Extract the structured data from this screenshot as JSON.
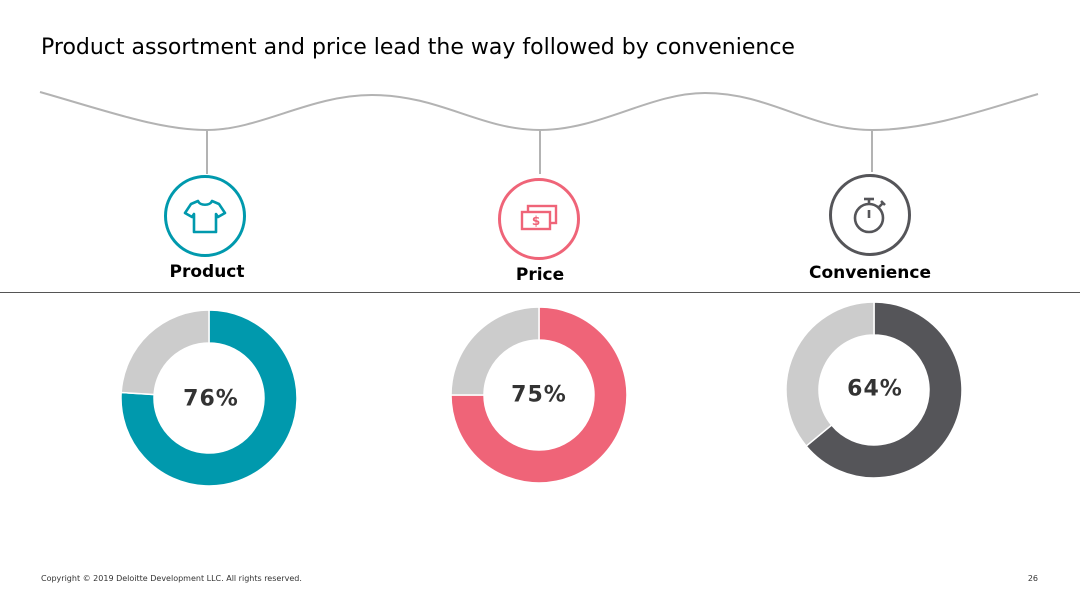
{
  "slide": {
    "title": "Product assortment and price lead the way followed by convenience",
    "footer": "Copyright © 2019 Deloitte Development LLC. All rights reserved.",
    "page_number": "26"
  },
  "colors": {
    "product": "#0099ad",
    "price": "#ef6478",
    "convenience": "#555559",
    "remainder": "#cccccc",
    "wave": "#b3b3b3"
  },
  "icons": {
    "product": "tshirt-icon",
    "price": "money-icon",
    "convenience": "stopwatch-icon"
  },
  "chart_data": [
    {
      "type": "pie",
      "variant": "donut",
      "category": "Product",
      "values": [
        76,
        24
      ],
      "label": "76%",
      "color": "#0099ad",
      "remainder_color": "#cccccc"
    },
    {
      "type": "pie",
      "variant": "donut",
      "category": "Price",
      "values": [
        75,
        25
      ],
      "label": "75%",
      "color": "#ef6478",
      "remainder_color": "#cccccc"
    },
    {
      "type": "pie",
      "variant": "donut",
      "category": "Convenience",
      "values": [
        64,
        36
      ],
      "label": "64%",
      "color": "#555559",
      "remainder_color": "#cccccc"
    }
  ]
}
